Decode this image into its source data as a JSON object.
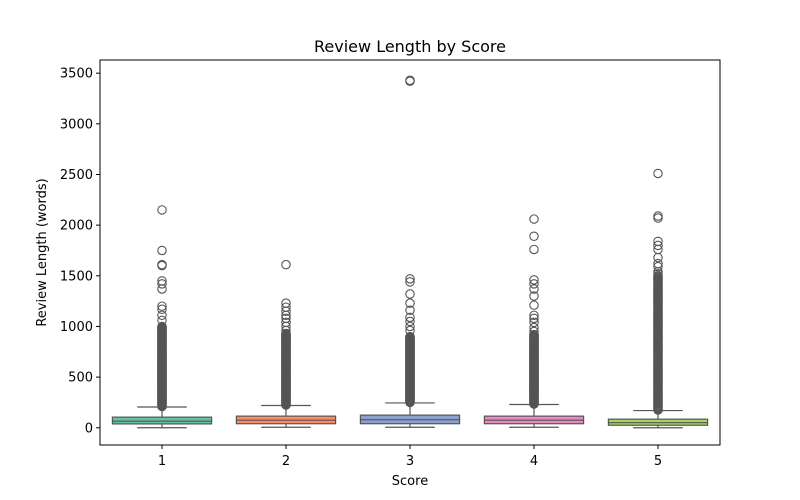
{
  "chart_data": {
    "type": "boxplot",
    "title": "Review Length by Score",
    "xlabel": "Score",
    "ylabel": "Review Length (words)",
    "categories": [
      "1",
      "2",
      "3",
      "4",
      "5"
    ],
    "ylim": [
      -170,
      3630
    ],
    "yticks": [
      0,
      500,
      1000,
      1500,
      2000,
      2500,
      3000,
      3500
    ],
    "grid": false,
    "boxes": [
      {
        "category": "1",
        "color": "#66c2a5",
        "min": 0,
        "q1": 38,
        "median": 65,
        "q3": 105,
        "whisker_high": 205,
        "outliers_dense_from": 210,
        "outliers_dense_to": 1000,
        "outliers": [
          1060,
          1110,
          1170,
          1200,
          1370,
          1420,
          1450,
          1600,
          1610,
          1750,
          2150
        ]
      },
      {
        "category": "2",
        "color": "#fc8d62",
        "min": 5,
        "q1": 40,
        "median": 75,
        "q3": 115,
        "whisker_high": 220,
        "outliers_dense_from": 225,
        "outliers_dense_to": 930,
        "outliers": [
          960,
          1000,
          1040,
          1080,
          1110,
          1150,
          1190,
          1230,
          1610
        ]
      },
      {
        "category": "3",
        "color": "#8da0cb",
        "min": 5,
        "q1": 40,
        "median": 80,
        "q3": 125,
        "whisker_high": 245,
        "outliers_dense_from": 250,
        "outliers_dense_to": 900,
        "outliers": [
          960,
          1000,
          1050,
          1090,
          1160,
          1230,
          1320,
          1440,
          1470,
          3420,
          3430
        ]
      },
      {
        "category": "4",
        "color": "#e78ac3",
        "min": 5,
        "q1": 40,
        "median": 75,
        "q3": 115,
        "whisker_high": 230,
        "outliers_dense_from": 235,
        "outliers_dense_to": 920,
        "outliers": [
          950,
          990,
          1040,
          1080,
          1110,
          1210,
          1300,
          1370,
          1420,
          1460,
          1760,
          1890,
          2060
        ]
      },
      {
        "category": "5",
        "color": "#a6d854",
        "min": 0,
        "q1": 25,
        "median": 50,
        "q3": 85,
        "whisker_high": 170,
        "outliers_dense_from": 175,
        "outliers_dense_to": 1500,
        "outliers": [
          1520,
          1540,
          1590,
          1620,
          1680,
          1760,
          1800,
          1840,
          2070,
          2090,
          2510
        ]
      }
    ]
  }
}
